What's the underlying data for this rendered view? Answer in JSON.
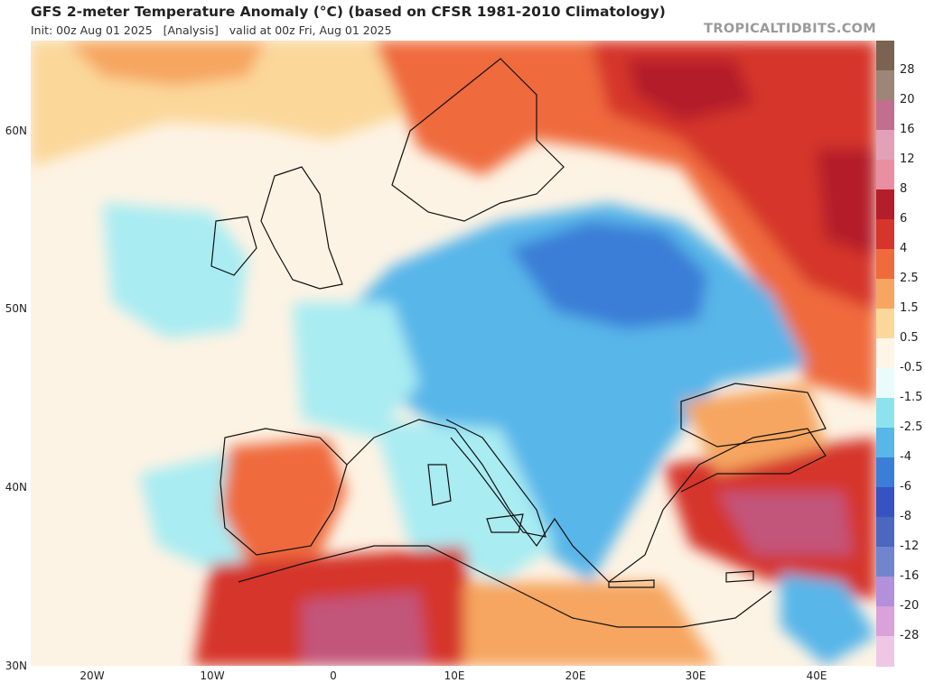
{
  "header": {
    "title": "GFS 2-meter Temperature Anomaly (°C) (based on CFSR 1981-2010 Climatology)",
    "subtitle": "Init: 00z Aug 01 2025   [Analysis]   valid at 00z Fri, Aug 01 2025",
    "brand": "TROPICALTIDBITS.COM"
  },
  "axes": {
    "lat_labels": [
      "60N",
      "50N",
      "40N",
      "30N"
    ],
    "lon_labels": [
      "20W",
      "10W",
      "0",
      "10E",
      "20E",
      "30E",
      "40E"
    ]
  },
  "colorbar": {
    "labels": [
      "28",
      "20",
      "16",
      "12",
      "8",
      "6",
      "4",
      "2.5",
      "1.5",
      "0.5",
      "-0.5",
      "-1.5",
      "-2.5",
      "-4",
      "-6",
      "-8",
      "-12",
      "-16",
      "-20",
      "-28"
    ],
    "colors": [
      "#7a6351",
      "#9c8678",
      "#c26f8f",
      "#e2a1b7",
      "#ea8fa2",
      "#b41d2a",
      "#d5352c",
      "#ef6a3c",
      "#f6a661",
      "#fbd79a",
      "#fdf6e6",
      "#e9fbfb",
      "#8de3ed",
      "#58b6e9",
      "#3b7ed7",
      "#3553c3",
      "#4a68c0",
      "#6f86cf",
      "#b290dc",
      "#d9a2d8",
      "#efc7e6"
    ]
  },
  "map": {
    "colors": {
      "ocean_neutral": "#fdf3e4",
      "warm_light": "#fbd79a",
      "warm": "#f6a661",
      "hot": "#ef6a3c",
      "very_hot": "#d5352c",
      "extreme": "#b41d2a",
      "peak": "#c2557a",
      "cool_light": "#a9ecf2",
      "cool": "#58b6e9",
      "cold": "#3b7ed7",
      "coastline": "#111111"
    }
  }
}
